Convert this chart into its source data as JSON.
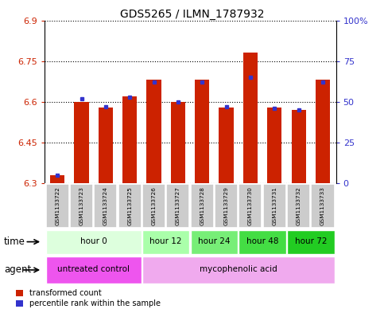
{
  "title": "GDS5265 / ILMN_1787932",
  "samples": [
    "GSM1133722",
    "GSM1133723",
    "GSM1133724",
    "GSM1133725",
    "GSM1133726",
    "GSM1133727",
    "GSM1133728",
    "GSM1133729",
    "GSM1133730",
    "GSM1133731",
    "GSM1133732",
    "GSM1133733"
  ],
  "transformed_count": [
    6.33,
    6.6,
    6.58,
    6.62,
    6.68,
    6.6,
    6.68,
    6.58,
    6.78,
    6.58,
    6.57,
    6.68
  ],
  "percentile_rank": [
    5,
    52,
    47,
    53,
    62,
    50,
    62,
    47,
    65,
    46,
    45,
    62
  ],
  "ymin": 6.3,
  "ymax": 6.9,
  "yticks": [
    6.3,
    6.45,
    6.6,
    6.75,
    6.9
  ],
  "right_yticks": [
    0,
    25,
    50,
    75,
    100
  ],
  "bar_color": "#cc2200",
  "dot_color": "#3333cc",
  "plot_bg": "#ffffff",
  "grid_color": "#000000",
  "time_groups": [
    {
      "label": "hour 0",
      "start": 0,
      "end": 3,
      "color": "#ddffdd"
    },
    {
      "label": "hour 12",
      "start": 4,
      "end": 5,
      "color": "#aaffaa"
    },
    {
      "label": "hour 24",
      "start": 6,
      "end": 7,
      "color": "#77ee77"
    },
    {
      "label": "hour 48",
      "start": 8,
      "end": 9,
      "color": "#44dd44"
    },
    {
      "label": "hour 72",
      "start": 10,
      "end": 11,
      "color": "#22cc22"
    }
  ],
  "agent_groups": [
    {
      "label": "untreated control",
      "start": 0,
      "end": 3,
      "color": "#ee55ee"
    },
    {
      "label": "mycophenolic acid",
      "start": 4,
      "end": 11,
      "color": "#f0aaee"
    }
  ],
  "bar_bottom": 6.3,
  "sample_bg": "#cccccc",
  "legend_red": "transformed count",
  "legend_blue": "percentile rank within the sample"
}
